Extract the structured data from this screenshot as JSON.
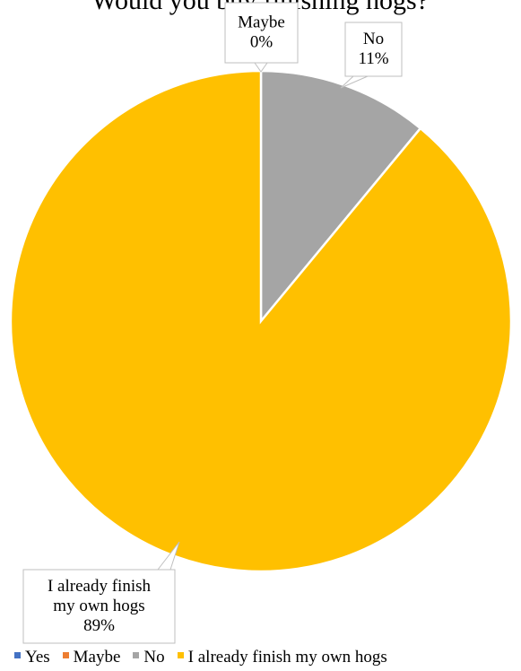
{
  "chart_data": {
    "type": "pie",
    "title": "Would you buy finishing hogs?",
    "categories": [
      "Yes",
      "Maybe",
      "No",
      "I already finish my own hogs"
    ],
    "values": [
      0,
      0,
      11,
      89
    ],
    "colors": [
      "#4472c4",
      "#ed7d31",
      "#a5a5a5",
      "#ffc000"
    ],
    "data_labels": [
      {
        "category": "Maybe",
        "lines": [
          "Maybe",
          "0%"
        ]
      },
      {
        "category": "No",
        "lines": [
          "No",
          "11%"
        ]
      },
      {
        "category": "I already finish my own hogs",
        "lines": [
          "I already finish",
          "my own hogs",
          "89%"
        ]
      }
    ],
    "legend_placement": "bottom"
  }
}
